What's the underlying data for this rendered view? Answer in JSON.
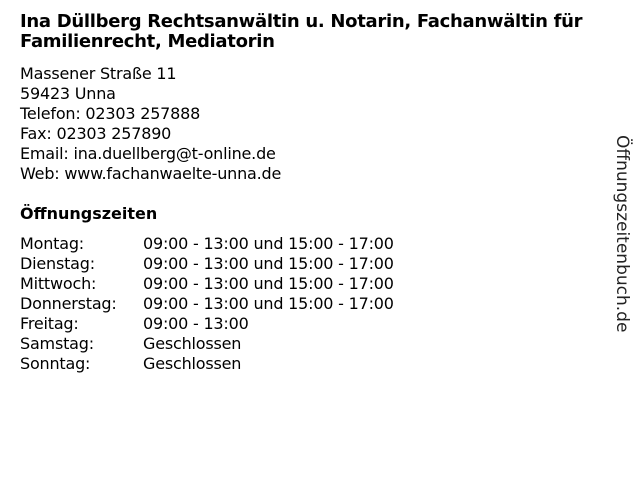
{
  "title": "Ina Düllberg Rechtsanwältin u. Notarin, Fachanwältin für Familienrecht, Mediatorin",
  "address": {
    "street": "Massener Straße 11",
    "city": "59423 Unna",
    "phone": "Telefon: 02303 257888",
    "fax": "Fax: 02303 257890",
    "email": "Email: ina.duellberg@t-online.de",
    "web": "Web: www.fachanwaelte-unna.de"
  },
  "hours": {
    "heading": "Öffnungszeiten",
    "rows": [
      {
        "day": "Montag:",
        "time": "09:00 - 13:00 und 15:00 - 17:00"
      },
      {
        "day": "Dienstag:",
        "time": "09:00 - 13:00 und 15:00 - 17:00"
      },
      {
        "day": "Mittwoch:",
        "time": "09:00 - 13:00 und 15:00 - 17:00"
      },
      {
        "day": "Donnerstag:",
        "time": "09:00 - 13:00 und 15:00 - 17:00"
      },
      {
        "day": "Freitag:",
        "time": "09:00 - 13:00"
      },
      {
        "day": "Samstag:",
        "time": "Geschlossen"
      },
      {
        "day": "Sonntag:",
        "time": "Geschlossen"
      }
    ]
  },
  "watermark": "Öffnungszeitenbuch.de"
}
